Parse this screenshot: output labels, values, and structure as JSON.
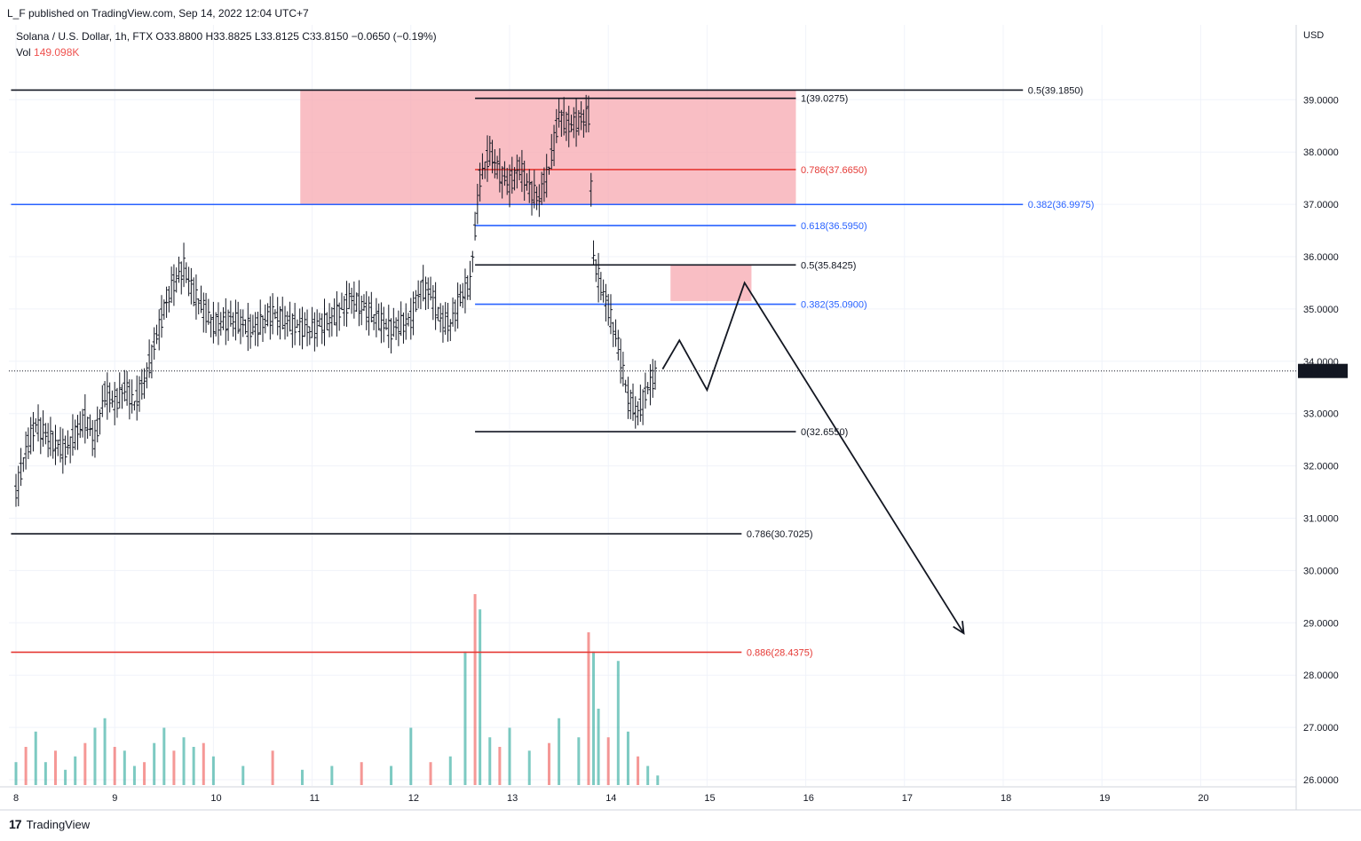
{
  "header": {
    "published": "L_F published on TradingView.com, Sep 14, 2022 12:04 UTC+7",
    "symbol_line": "Solana / U.S. Dollar, 1h, FTX  O33.8800  H33.8825  L33.8125  C33.8150  −0.0650 (−0.19%)",
    "vol_label": "Vol",
    "vol_value": "149.098K",
    "currency": "USD"
  },
  "footer": {
    "brand": "TradingView",
    "logo": "17"
  },
  "colors": {
    "up": "#26a69a",
    "down": "#ef5350",
    "blue": "#2962ff",
    "red": "#e53935",
    "zone": "#f7a8b0"
  },
  "chart_data": {
    "type": "candlestick",
    "title": "Solana / U.S. Dollar, 1h, FTX",
    "ylabel": "USD",
    "ylim": [
      26,
      40
    ],
    "y_ticks": [
      "26.0000",
      "27.0000",
      "28.0000",
      "29.0000",
      "30.0000",
      "31.0000",
      "32.0000",
      "33.0000",
      "34.0000",
      "35.0000",
      "36.0000",
      "37.0000",
      "38.0000",
      "39.0000"
    ],
    "x_ticks": [
      {
        "label": "8",
        "day": 8
      },
      {
        "label": "9",
        "day": 9
      },
      {
        "label": "10",
        "day": 10
      },
      {
        "label": "11",
        "day": 11
      },
      {
        "label": "12",
        "day": 12
      },
      {
        "label": "13",
        "day": 13
      },
      {
        "label": "14",
        "day": 14
      },
      {
        "label": "15",
        "day": 15
      },
      {
        "label": "16",
        "day": 16
      },
      {
        "label": "17",
        "day": 17
      },
      {
        "label": "18",
        "day": 18
      },
      {
        "label": "19",
        "day": 19
      },
      {
        "label": "20",
        "day": 20
      }
    ],
    "last_price": "33.8150",
    "last_price_value": 33.815,
    "price_path": [
      [
        8.0,
        31.5
      ],
      [
        8.1,
        32.3
      ],
      [
        8.2,
        32.8
      ],
      [
        8.3,
        32.6
      ],
      [
        8.4,
        32.4
      ],
      [
        8.5,
        32.3
      ],
      [
        8.6,
        32.6
      ],
      [
        8.7,
        32.9
      ],
      [
        8.8,
        32.5
      ],
      [
        8.9,
        33.4
      ],
      [
        9.0,
        33.2
      ],
      [
        9.1,
        33.5
      ],
      [
        9.2,
        33.2
      ],
      [
        9.3,
        33.6
      ],
      [
        9.4,
        34.3
      ],
      [
        9.5,
        35.0
      ],
      [
        9.6,
        35.5
      ],
      [
        9.7,
        35.8
      ],
      [
        9.8,
        35.3
      ],
      [
        9.9,
        35.0
      ],
      [
        10.0,
        34.7
      ],
      [
        10.2,
        34.8
      ],
      [
        10.4,
        34.6
      ],
      [
        10.6,
        34.9
      ],
      [
        10.8,
        34.7
      ],
      [
        11.0,
        34.6
      ],
      [
        11.2,
        34.8
      ],
      [
        11.4,
        35.2
      ],
      [
        11.6,
        34.9
      ],
      [
        11.8,
        34.6
      ],
      [
        12.0,
        34.8
      ],
      [
        12.1,
        35.4
      ],
      [
        12.2,
        35.3
      ],
      [
        12.3,
        34.8
      ],
      [
        12.4,
        34.7
      ],
      [
        12.5,
        35.2
      ],
      [
        12.6,
        35.5
      ],
      [
        12.65,
        36.5
      ],
      [
        12.7,
        37.5
      ],
      [
        12.8,
        38.0
      ],
      [
        12.9,
        37.6
      ],
      [
        13.0,
        37.4
      ],
      [
        13.1,
        37.7
      ],
      [
        13.2,
        37.3
      ],
      [
        13.3,
        37.1
      ],
      [
        13.4,
        37.7
      ],
      [
        13.5,
        38.7
      ],
      [
        13.6,
        38.5
      ],
      [
        13.7,
        38.6
      ],
      [
        13.8,
        38.7
      ],
      [
        13.85,
        36.0
      ],
      [
        13.9,
        35.6
      ],
      [
        14.0,
        35.0
      ],
      [
        14.1,
        34.3
      ],
      [
        14.15,
        33.8
      ],
      [
        14.2,
        33.3
      ],
      [
        14.3,
        33.0
      ],
      [
        14.4,
        33.5
      ],
      [
        14.5,
        33.8
      ]
    ],
    "volume": [
      [
        8.0,
        0.12
      ],
      [
        8.1,
        0.2
      ],
      [
        8.2,
        0.28
      ],
      [
        8.3,
        0.12
      ],
      [
        8.4,
        0.18
      ],
      [
        8.5,
        0.08
      ],
      [
        8.6,
        0.15
      ],
      [
        8.7,
        0.22
      ],
      [
        8.8,
        0.3
      ],
      [
        8.9,
        0.35
      ],
      [
        9.0,
        0.2
      ],
      [
        9.1,
        0.18
      ],
      [
        9.2,
        0.1
      ],
      [
        9.3,
        0.12
      ],
      [
        9.4,
        0.22
      ],
      [
        9.5,
        0.3
      ],
      [
        9.6,
        0.18
      ],
      [
        9.7,
        0.25
      ],
      [
        9.8,
        0.2
      ],
      [
        9.9,
        0.22
      ],
      [
        10.0,
        0.15
      ],
      [
        10.3,
        0.1
      ],
      [
        10.6,
        0.18
      ],
      [
        10.9,
        0.08
      ],
      [
        11.2,
        0.1
      ],
      [
        11.5,
        0.12
      ],
      [
        11.8,
        0.1
      ],
      [
        12.0,
        0.3
      ],
      [
        12.2,
        0.12
      ],
      [
        12.4,
        0.15
      ],
      [
        12.55,
        0.7
      ],
      [
        12.65,
        1.0
      ],
      [
        12.7,
        0.92
      ],
      [
        12.8,
        0.25
      ],
      [
        12.9,
        0.2
      ],
      [
        13.0,
        0.3
      ],
      [
        13.2,
        0.18
      ],
      [
        13.4,
        0.22
      ],
      [
        13.5,
        0.35
      ],
      [
        13.7,
        0.25
      ],
      [
        13.8,
        0.8
      ],
      [
        13.85,
        0.7
      ],
      [
        13.9,
        0.4
      ],
      [
        14.0,
        0.25
      ],
      [
        14.1,
        0.65
      ],
      [
        14.2,
        0.28
      ],
      [
        14.3,
        0.15
      ],
      [
        14.4,
        0.1
      ],
      [
        14.5,
        0.05
      ]
    ],
    "levels": [
      {
        "label": "0.5(39.1850)",
        "value": 39.185,
        "color": "black",
        "x_from": 7.95,
        "x_to": 18.2,
        "label_day": 18.25
      },
      {
        "label": "1(39.0275)",
        "value": 39.0275,
        "color": "black",
        "x_from": 12.65,
        "x_to": 15.9,
        "label_day": 15.95
      },
      {
        "label": "0.786(37.6650)",
        "value": 37.665,
        "color": "red",
        "x_from": 12.65,
        "x_to": 15.9,
        "label_day": 15.95
      },
      {
        "label": "0.382(36.9975)",
        "value": 36.9975,
        "color": "blue",
        "x_from": 7.95,
        "x_to": 18.2,
        "label_day": 18.25
      },
      {
        "label": "0.618(36.5950)",
        "value": 36.595,
        "color": "blue",
        "x_from": 12.65,
        "x_to": 15.9,
        "label_day": 15.95
      },
      {
        "label": "0.5(35.8425)",
        "value": 35.8425,
        "color": "black",
        "x_from": 12.65,
        "x_to": 15.9,
        "label_day": 15.95
      },
      {
        "label": "0.382(35.0900)",
        "value": 35.09,
        "color": "blue",
        "x_from": 12.65,
        "x_to": 15.9,
        "label_day": 15.95
      },
      {
        "label": "0(32.6550)",
        "value": 32.655,
        "color": "black",
        "x_from": 12.65,
        "x_to": 15.9,
        "label_day": 15.95
      },
      {
        "label": "0.786(30.7025)",
        "value": 30.7025,
        "color": "black",
        "x_from": 7.95,
        "x_to": 15.35,
        "label_day": 15.4
      },
      {
        "label": "0.886(28.4375)",
        "value": 28.4375,
        "color": "red",
        "x_from": 7.95,
        "x_to": 15.35,
        "label_day": 15.4
      }
    ],
    "zones": [
      {
        "name": "supply-zone-upper",
        "x_from": 10.88,
        "x_to": 15.9,
        "y_from": 36.9975,
        "y_to": 39.185
      },
      {
        "name": "supply-zone-lower",
        "x_from": 14.63,
        "x_to": 15.45,
        "y_from": 35.15,
        "y_to": 35.85
      }
    ],
    "projection": [
      [
        14.55,
        33.85
      ],
      [
        14.72,
        34.4
      ],
      [
        15.0,
        33.45
      ],
      [
        15.38,
        35.5
      ],
      [
        17.6,
        28.8
      ]
    ]
  }
}
